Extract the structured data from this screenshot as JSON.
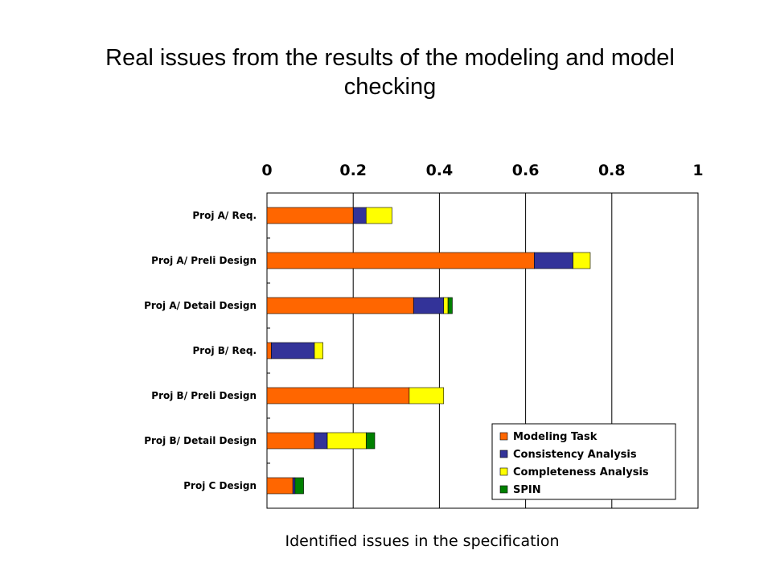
{
  "header": {
    "title_line1": "Real issues from the results of the modeling and model",
    "title_line2": "checking"
  },
  "footer": {
    "caption": "Identified issues in the specification"
  },
  "chart_data": {
    "type": "bar",
    "orientation": "horizontal",
    "stacked": true,
    "xlim": [
      0,
      1
    ],
    "x_ticks": [
      "0",
      "0.2",
      "0.4",
      "0.6",
      "0.8",
      "1"
    ],
    "x_tick_values": [
      0,
      0.2,
      0.4,
      0.6,
      0.8,
      1
    ],
    "x_axis_position": "top",
    "grid": true,
    "legend_position": "bottom-right",
    "categories": [
      "Proj A/ Req.",
      "Proj A/ Preli Design",
      "Proj A/ Detail Design",
      "Proj B/ Req.",
      "Proj B/ Preli Design",
      "Proj B/ Detail Design",
      "Proj C Design"
    ],
    "series": [
      {
        "name": "Modeling Task",
        "color": "#ff6600",
        "values": [
          0.2,
          0.62,
          0.34,
          0.01,
          0.33,
          0.11,
          0.06
        ]
      },
      {
        "name": "Consistency Analysis",
        "color": "#333399",
        "values": [
          0.03,
          0.09,
          0.07,
          0.1,
          0.0,
          0.03,
          0.005
        ]
      },
      {
        "name": "Completeness Analysis",
        "color": "#ffff00",
        "values": [
          0.06,
          0.04,
          0.01,
          0.02,
          0.08,
          0.09,
          0.0
        ]
      },
      {
        "name": "SPIN",
        "color": "#008000",
        "values": [
          0.0,
          0.0,
          0.01,
          0.0,
          0.0,
          0.02,
          0.02
        ]
      }
    ]
  }
}
